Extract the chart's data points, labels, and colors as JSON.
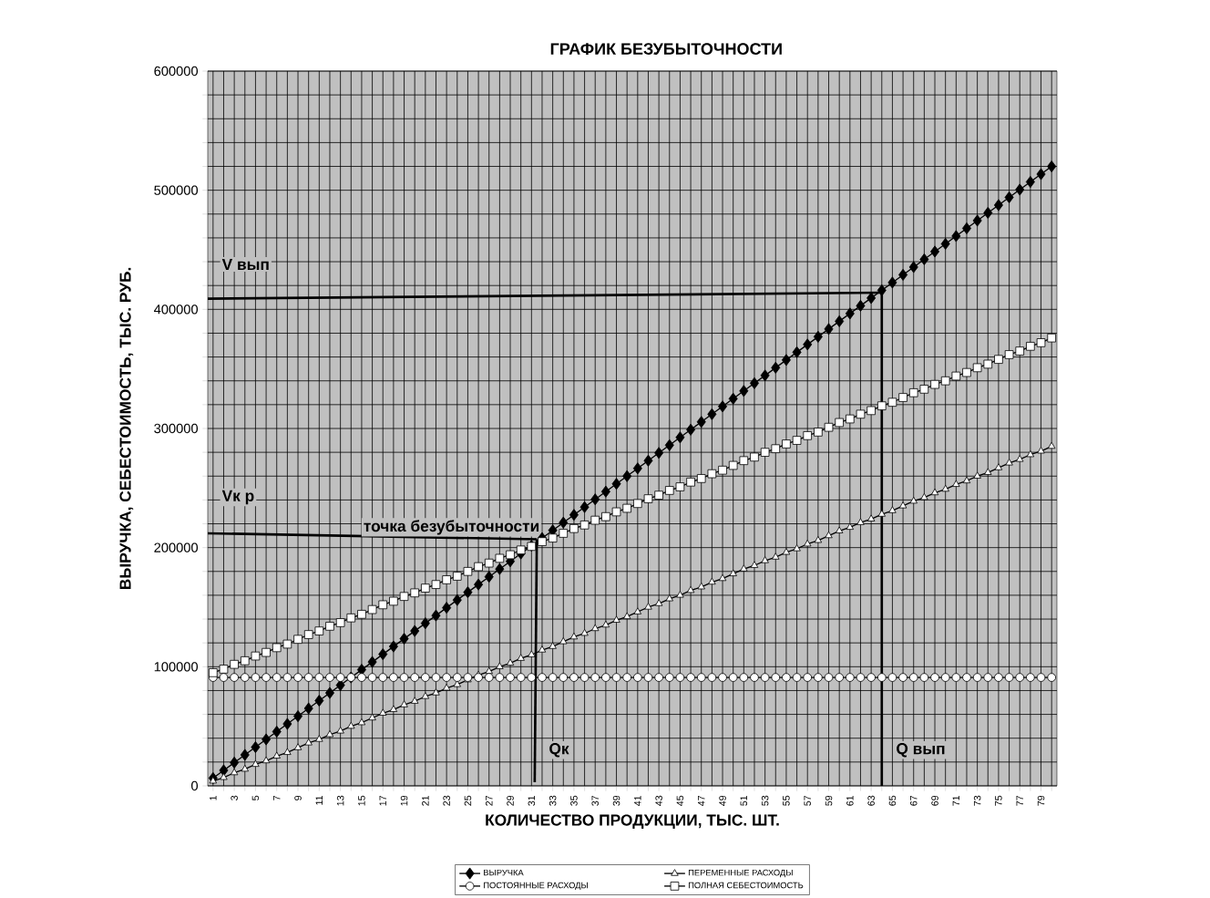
{
  "chart_data": {
    "type": "line",
    "title": "ГРАФИК БЕЗУБЫТОЧНОСТИ",
    "xlabel": "КОЛИЧЕСТВО ПРОДУКЦИИ, ТЫС. ШТ.",
    "ylabel": "ВЫРУЧКА, СЕБЕСТОИМОСТЬ, ТЫС. РУБ.",
    "x": [
      1,
      2,
      3,
      4,
      5,
      6,
      7,
      8,
      9,
      10,
      11,
      12,
      13,
      14,
      15,
      16,
      17,
      18,
      19,
      20,
      21,
      22,
      23,
      24,
      25,
      26,
      27,
      28,
      29,
      30,
      31,
      32,
      33,
      34,
      35,
      36,
      37,
      38,
      39,
      40,
      41,
      42,
      43,
      44,
      45,
      46,
      47,
      48,
      49,
      50,
      51,
      52,
      53,
      54,
      55,
      56,
      57,
      58,
      59,
      60,
      61,
      62,
      63,
      64,
      65,
      66,
      67,
      68,
      69,
      70,
      71,
      72,
      73,
      74,
      75,
      76,
      77,
      78,
      79,
      80
    ],
    "xlim": [
      0.5,
      80.5
    ],
    "xticks": [
      1,
      {
        "value": 2,
        "label": null
      },
      3,
      {
        "value": 4,
        "label": null
      },
      5,
      {
        "value": 6,
        "label": null
      },
      7,
      {
        "value": 8,
        "label": null
      },
      9,
      {
        "value": 10,
        "label": null
      },
      11,
      {
        "value": 12,
        "label": null
      },
      13,
      {
        "value": 14,
        "label": null
      },
      15,
      {
        "value": 16,
        "label": null
      },
      17,
      {
        "value": 18,
        "label": null
      },
      19,
      {
        "value": 20,
        "label": null
      },
      21,
      {
        "value": 22,
        "label": null
      },
      23,
      {
        "value": 24,
        "label": null
      },
      25,
      {
        "value": 26,
        "label": null
      },
      27,
      {
        "value": 28,
        "label": null
      },
      29,
      {
        "value": 30,
        "label": null
      },
      31,
      {
        "value": 32,
        "label": null
      },
      33,
      {
        "value": 34,
        "label": null
      },
      35,
      {
        "value": 36,
        "label": null
      },
      37,
      {
        "value": 38,
        "label": null
      },
      39,
      {
        "value": 40,
        "label": null
      },
      41,
      {
        "value": 42,
        "label": null
      },
      43,
      {
        "value": 44,
        "label": null
      },
      45,
      {
        "value": 46,
        "label": null
      },
      47,
      {
        "value": 48,
        "label": null
      },
      49,
      {
        "value": 50,
        "label": null
      },
      51,
      {
        "value": 52,
        "label": null
      },
      53,
      {
        "value": 54,
        "label": null
      },
      55,
      {
        "value": 56,
        "label": null
      },
      57,
      {
        "value": 58,
        "label": null
      },
      59,
      {
        "value": 60,
        "label": null
      },
      61,
      {
        "value": 62,
        "label": null
      },
      63,
      {
        "value": 64,
        "label": null
      },
      65,
      {
        "value": 66,
        "label": null
      },
      67,
      {
        "value": 68,
        "label": null
      },
      69,
      {
        "value": 70,
        "label": null
      },
      71,
      {
        "value": 72,
        "label": null
      },
      73,
      {
        "value": 74,
        "label": null
      },
      75,
      {
        "value": 76,
        "label": null
      },
      77,
      {
        "value": 78,
        "label": null
      },
      79,
      {
        "value": 80,
        "label": null
      }
    ],
    "ylim": [
      0,
      600000
    ],
    "yticks": [
      0,
      {
        "value": 20000,
        "label": null
      },
      {
        "value": 40000,
        "label": null
      },
      {
        "value": 60000,
        "label": null
      },
      {
        "value": 80000,
        "label": null
      },
      100000,
      {
        "value": 120000,
        "label": null
      },
      {
        "value": 140000,
        "label": null
      },
      {
        "value": 160000,
        "label": null
      },
      {
        "value": 180000,
        "label": null
      },
      200000,
      {
        "value": 220000,
        "label": null
      },
      {
        "value": 240000,
        "label": null
      },
      {
        "value": 260000,
        "label": null
      },
      {
        "value": 280000,
        "label": null
      },
      300000,
      {
        "value": 320000,
        "label": null
      },
      {
        "value": 340000,
        "label": null
      },
      {
        "value": 360000,
        "label": null
      },
      {
        "value": 380000,
        "label": null
      },
      400000,
      {
        "value": 420000,
        "label": null
      },
      {
        "value": 440000,
        "label": null
      },
      {
        "value": 460000,
        "label": null
      },
      {
        "value": 480000,
        "label": null
      },
      500000,
      {
        "value": 520000,
        "label": null
      },
      {
        "value": 540000,
        "label": null
      },
      {
        "value": 560000,
        "label": null
      },
      {
        "value": 580000,
        "label": null
      },
      600000
    ],
    "grid": true,
    "legend": "bottom",
    "line_style": "solid",
    "series": [
      {
        "name": "ВЫРУЧКА",
        "color": "#000000",
        "marker": "diamond",
        "values": [
          6500,
          13000,
          19500,
          26000,
          32500,
          39000,
          45500,
          52000,
          58500,
          65000,
          71500,
          78000,
          84500,
          91000,
          97500,
          104000,
          110500,
          117000,
          123500,
          130000,
          136500,
          143000,
          149500,
          156000,
          162500,
          169000,
          175500,
          182000,
          188500,
          195000,
          201500,
          208000,
          214500,
          221000,
          227500,
          234000,
          240500,
          247000,
          253500,
          260000,
          266500,
          273000,
          279500,
          286000,
          292500,
          299000,
          305500,
          312000,
          318500,
          325000,
          331500,
          338000,
          344500,
          351000,
          357500,
          364000,
          370500,
          377000,
          383500,
          390000,
          396500,
          403000,
          409500,
          416000,
          422500,
          429000,
          435500,
          442000,
          448500,
          455000,
          461500,
          468000,
          474500,
          481000,
          487500,
          494000,
          500500,
          507000,
          513500,
          520000
        ]
      },
      {
        "name": "ПЕРЕМЕННЫЕ РАСХОДЫ",
        "color": "#000000",
        "marker": "triangle",
        "values": [
          4000,
          7000,
          11000,
          14000,
          18000,
          21000,
          25000,
          28000,
          32000,
          36000,
          39000,
          43000,
          46000,
          50000,
          53000,
          57000,
          61000,
          64000,
          68000,
          71000,
          75000,
          78000,
          82000,
          85000,
          89000,
          93000,
          96000,
          100000,
          103000,
          107000,
          110000,
          114000,
          117000,
          121000,
          125000,
          128000,
          132000,
          135000,
          139000,
          142000,
          146000,
          150000,
          153000,
          157000,
          160000,
          164000,
          167000,
          171000,
          174000,
          178000,
          182000,
          185000,
          189000,
          192000,
          196000,
          199000,
          203000,
          206000,
          210000,
          214000,
          217000,
          221000,
          224000,
          228000,
          231000,
          235000,
          239000,
          242000,
          246000,
          249000,
          253000,
          256000,
          260000,
          263000,
          267000,
          271000,
          274000,
          278000,
          281000,
          285000
        ]
      },
      {
        "name": "ПОСТОЯННЫЕ  РАСХОДЫ",
        "color": "#000000",
        "marker": "circle",
        "values": [
          91000,
          91000,
          91000,
          91000,
          91000,
          91000,
          91000,
          91000,
          91000,
          91000,
          91000,
          91000,
          91000,
          91000,
          91000,
          91000,
          91000,
          91000,
          91000,
          91000,
          91000,
          91000,
          91000,
          91000,
          91000,
          91000,
          91000,
          91000,
          91000,
          91000,
          91000,
          91000,
          91000,
          91000,
          91000,
          91000,
          91000,
          91000,
          91000,
          91000,
          91000,
          91000,
          91000,
          91000,
          91000,
          91000,
          91000,
          91000,
          91000,
          91000,
          91000,
          91000,
          91000,
          91000,
          91000,
          91000,
          91000,
          91000,
          91000,
          91000,
          91000,
          91000,
          91000,
          91000,
          91000,
          91000,
          91000,
          91000,
          91000,
          91000,
          91000,
          91000,
          91000,
          91000,
          91000,
          91000,
          91000,
          91000,
          91000,
          91000
        ]
      },
      {
        "name": "ПОЛНАЯ СЕБЕСТОИМОСТЬ",
        "color": "#000000",
        "marker": "square",
        "values": [
          95000,
          98000,
          102000,
          105000,
          109000,
          112000,
          116000,
          119000,
          123000,
          127000,
          130000,
          134000,
          137000,
          141000,
          144000,
          148000,
          152000,
          155000,
          159000,
          162000,
          166000,
          169000,
          173000,
          176000,
          180000,
          184000,
          187000,
          191000,
          194000,
          198000,
          201000,
          205000,
          208000,
          212000,
          216000,
          219000,
          223000,
          226000,
          230000,
          233000,
          237000,
          241000,
          244000,
          248000,
          251000,
          255000,
          258000,
          262000,
          265000,
          269000,
          273000,
          276000,
          280000,
          283000,
          287000,
          290000,
          294000,
          297000,
          301000,
          305000,
          308000,
          312000,
          315000,
          319000,
          322000,
          326000,
          330000,
          333000,
          337000,
          340000,
          344000,
          347000,
          351000,
          354000,
          358000,
          362000,
          365000,
          369000,
          372000,
          376000
        ]
      },
      {
        "type": "line",
        "color": "#000000",
        "marker": "none",
        "x": [
          0.5,
          64
        ],
        "values": [
          409000,
          414000
        ]
      },
      {
        "type": "line",
        "color": "#000000",
        "marker": "none",
        "x": [
          64,
          64
        ],
        "values": [
          414000,
          0
        ]
      },
      {
        "type": "line",
        "color": "#000000",
        "marker": "none",
        "x": [
          0.5,
          31.5
        ],
        "values": [
          212000,
          207000
        ]
      },
      {
        "type": "line",
        "color": "#000000",
        "marker": "none",
        "x": [
          31.5,
          31.3
        ],
        "values": [
          207000,
          3000
        ]
      }
    ],
    "annotations": [
      {
        "text": "V вып",
        "x": 0.5,
        "y": 409000
      },
      {
        "text": "Vк р",
        "x": 0.5,
        "y": 212000
      },
      {
        "text": "точка безубыточности",
        "x": 31.5,
        "y": 207000
      },
      {
        "text": "Qк",
        "x": 31.3,
        "y": 30000
      },
      {
        "text": "Q вып",
        "x": 64,
        "y": 30000
      }
    ]
  }
}
